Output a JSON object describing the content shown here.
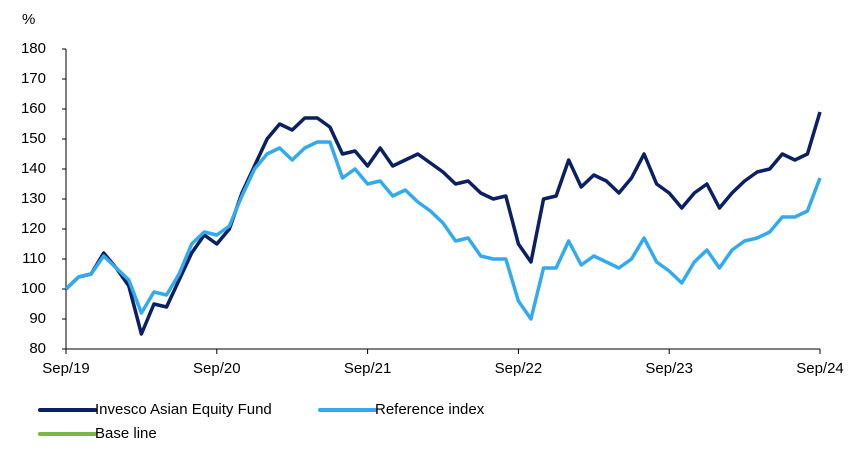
{
  "chart_data": {
    "type": "line",
    "y_label": "%",
    "categories": [
      "Sep/19",
      null,
      null,
      null,
      null,
      null,
      null,
      null,
      null,
      null,
      null,
      null,
      "Sep/20",
      null,
      null,
      null,
      null,
      null,
      null,
      null,
      null,
      null,
      null,
      null,
      "Sep/21",
      null,
      null,
      null,
      null,
      null,
      null,
      null,
      null,
      null,
      null,
      null,
      "Sep/22",
      null,
      null,
      null,
      null,
      null,
      null,
      null,
      null,
      null,
      null,
      null,
      "Sep/23",
      null,
      null,
      null,
      null,
      null,
      null,
      null,
      null,
      null,
      null,
      null,
      "Sep/24"
    ],
    "series": [
      {
        "name": "Invesco Asian Equity Fund",
        "color": "#0b1f65",
        "values": [
          100,
          104,
          105,
          112,
          107,
          101,
          85,
          95,
          94,
          103,
          112,
          118,
          115,
          120,
          132,
          141,
          150,
          155,
          153,
          157,
          157,
          154,
          145,
          146,
          141,
          147,
          141,
          143,
          145,
          142,
          139,
          135,
          136,
          132,
          130,
          131,
          115,
          109,
          130,
          131,
          143,
          134,
          138,
          136,
          132,
          137,
          145,
          135,
          132,
          127,
          132,
          135,
          127,
          132,
          136,
          139,
          140,
          145,
          143,
          145,
          159
        ]
      },
      {
        "name": "Reference index",
        "color": "#33aaee",
        "values": [
          100,
          104,
          105,
          111,
          107,
          103,
          92,
          99,
          98,
          105,
          115,
          119,
          118,
          121,
          131,
          140,
          145,
          147,
          143,
          147,
          149,
          149,
          137,
          140,
          135,
          136,
          131,
          133,
          129,
          126,
          122,
          116,
          117,
          111,
          110,
          110,
          96,
          90,
          107,
          107,
          116,
          108,
          111,
          109,
          107,
          110,
          117,
          109,
          106,
          102,
          109,
          113,
          107,
          113,
          116,
          117,
          119,
          124,
          124,
          126,
          137
        ]
      },
      {
        "name": "Base line",
        "color": "#7ab648",
        "values": [
          null,
          null,
          null,
          null,
          null,
          null,
          null,
          null,
          null,
          null,
          null,
          null,
          null,
          null,
          null,
          null,
          null,
          null,
          null,
          null,
          null,
          null,
          null,
          null,
          null,
          null,
          null,
          null,
          null,
          null,
          null,
          null,
          null,
          null,
          null,
          null,
          null,
          null,
          null,
          null,
          null,
          null,
          null,
          null,
          null,
          null,
          null,
          null,
          null,
          null,
          null,
          null,
          null,
          null,
          null,
          null,
          null,
          null,
          null,
          null,
          null
        ]
      }
    ],
    "ylim": [
      80,
      180
    ],
    "yticks": [
      80,
      90,
      100,
      110,
      120,
      130,
      140,
      150,
      160,
      170,
      180
    ],
    "grid": false
  }
}
